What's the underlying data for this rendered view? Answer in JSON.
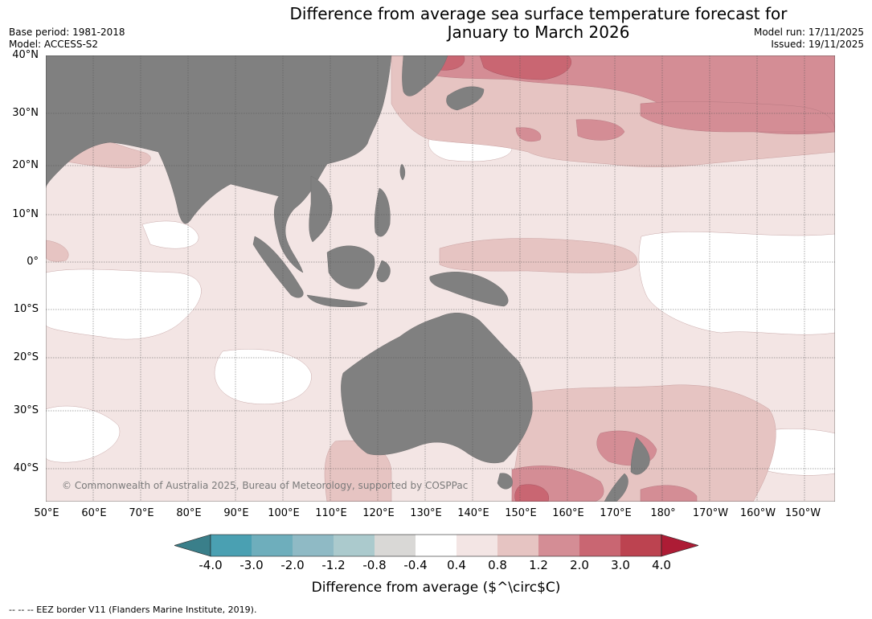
{
  "title": {
    "line1": "Difference from average sea surface temperature forecast for",
    "line2": "January to March 2026"
  },
  "header_left": {
    "base_period": "Base period: 1981-2018",
    "model": "Model: ACCESS-S2"
  },
  "header_right": {
    "model_run": "Model run: 17/11/2025",
    "issued": "Issued: 19/11/2025"
  },
  "map": {
    "lat_labels": [
      "40°N",
      "30°N",
      "20°N",
      "10°N",
      "0°",
      "10°S",
      "20°S",
      "30°S",
      "40°S"
    ],
    "lon_labels": [
      "50°E",
      "60°E",
      "70°E",
      "80°E",
      "90°E",
      "100°E",
      "110°E",
      "120°E",
      "130°E",
      "140°E",
      "150°E",
      "160°E",
      "170°E",
      "180°",
      "170°W",
      "160°W",
      "150°W"
    ],
    "credit": "© Commonwealth of Australia 2025, Bureau of Meteorology, supported by COSPPac",
    "colors": {
      "land": "#808080",
      "ocean_default": "#f3e5e4",
      "grid": "#555555"
    }
  },
  "colorbar": {
    "ticks": [
      "-4.0",
      "-3.0",
      "-2.0",
      "-1.2",
      "-0.8",
      "-0.4",
      "0.4",
      "0.8",
      "1.2",
      "2.0",
      "3.0",
      "4.0"
    ],
    "colors": [
      "#3a7f8a",
      "#4aa0b2",
      "#6eaebc",
      "#8fbac5",
      "#abcacd",
      "#d9d8d6",
      "#ffffff",
      "#f3e5e4",
      "#e6c4c2",
      "#d48d95",
      "#c96672",
      "#bc4350",
      "#ad1c35"
    ],
    "label": "Difference from average ($^\\circ$C)"
  },
  "footnote": "--  --  -- EEZ border V11 (Flanders Marine Institute, 2019)."
}
